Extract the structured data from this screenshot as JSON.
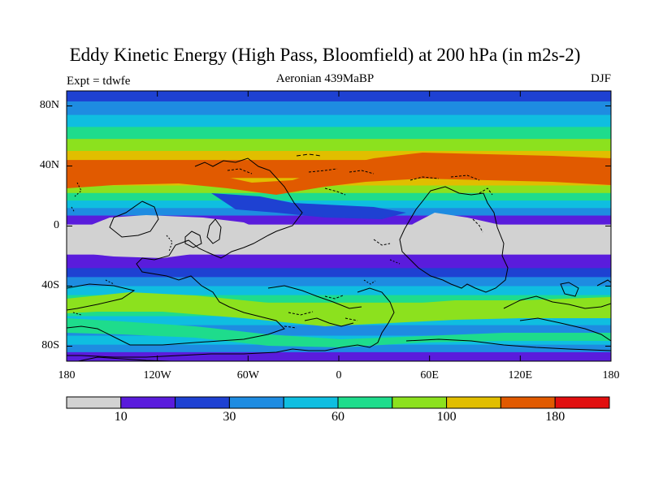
{
  "title": "Eddy Kinetic Energy (High Pass, Bloomfield) at 200 hPa (in m2s-2)",
  "subtitle_left": "Expt = tdwfe",
  "subtitle_center": "Aeronian 439MaBP",
  "subtitle_right": "DJF",
  "axes": {
    "lat_ticks": [
      "80N",
      "40N",
      "0",
      "40S",
      "80S"
    ],
    "lon_ticks": [
      "180",
      "120W",
      "60W",
      "0",
      "60E",
      "120E",
      "180"
    ],
    "lat_range": [
      -90,
      90
    ],
    "lon_range": [
      -180,
      180
    ]
  },
  "colorbar": {
    "labels": [
      {
        "text": "10",
        "box": 1
      },
      {
        "text": "30",
        "box": 3
      },
      {
        "text": "60",
        "box": 5
      },
      {
        "text": "100",
        "box": 7
      },
      {
        "text": "180",
        "box": 9
      }
    ],
    "colors": [
      "#d2d2d2",
      "#5a1cdc",
      "#1e41d2",
      "#1e8ce1",
      "#0fbee0",
      "#1edc8c",
      "#8ce11e",
      "#e1be00",
      "#e15a00",
      "#e10f0f"
    ]
  },
  "chart_data": {
    "type": "heatmap",
    "variable": "eddy kinetic energy",
    "units": "m2s-2",
    "level_hPa": 200,
    "season": "DJF",
    "x": {
      "name": "longitude",
      "range": [
        -180,
        180
      ]
    },
    "y": {
      "name": "latitude",
      "range": [
        -90,
        90
      ]
    },
    "bands": [
      {
        "lat_from": 90,
        "lat_to": 83,
        "level": 2
      },
      {
        "lat_from": 83,
        "lat_to": 74,
        "level": 3
      },
      {
        "lat_from": 74,
        "lat_to": 66,
        "level": 4
      },
      {
        "lat_from": 66,
        "lat_to": 58,
        "level": 5
      },
      {
        "lat_from": 58,
        "lat_to": 50,
        "level": 6
      },
      {
        "lat_from": 50,
        "lat_to": 44,
        "level": 7
      },
      {
        "lat_from": 44,
        "lat_to": 32,
        "level": 8
      },
      {
        "lat_from": 32,
        "lat_to": 27,
        "level": 7
      },
      {
        "lat_from": 27,
        "lat_to": 22,
        "level": 6
      },
      {
        "lat_from": 22,
        "lat_to": 17,
        "level": 5
      },
      {
        "lat_from": 17,
        "lat_to": 12,
        "level": 4
      },
      {
        "lat_from": 12,
        "lat_to": 7,
        "level": 3
      },
      {
        "lat_from": 7,
        "lat_to": 1,
        "level": 1
      },
      {
        "lat_from": 1,
        "lat_to": -19,
        "level": 0
      },
      {
        "lat_from": -19,
        "lat_to": -28,
        "level": 1
      },
      {
        "lat_from": -28,
        "lat_to": -34,
        "level": 2
      },
      {
        "lat_from": -34,
        "lat_to": -40,
        "level": 3
      },
      {
        "lat_from": -40,
        "lat_to": -46,
        "level": 4
      },
      {
        "lat_from": -46,
        "lat_to": -51,
        "level": 5
      },
      {
        "lat_from": -51,
        "lat_to": -56,
        "level": 6
      },
      {
        "lat_from": -56,
        "lat_to": -60,
        "level": 5
      },
      {
        "lat_from": -60,
        "lat_to": -66,
        "level": 4
      },
      {
        "lat_from": -66,
        "lat_to": -73,
        "level": 3
      },
      {
        "lat_from": -73,
        "lat_to": -79,
        "level": 4
      },
      {
        "lat_from": -79,
        "lat_to": -84,
        "level": 3
      },
      {
        "lat_from": -84,
        "lat_to": -90,
        "level": 1
      }
    ]
  }
}
